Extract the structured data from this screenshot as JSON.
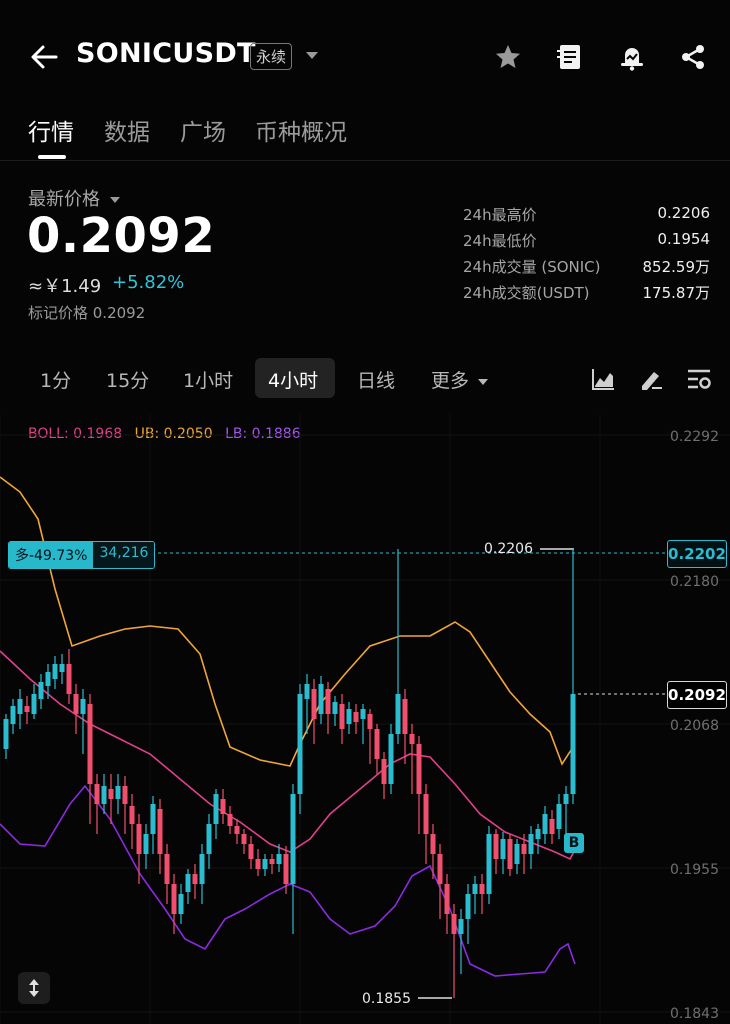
{
  "header": {
    "title": "SONICUSDT",
    "contract_type": "永续",
    "icons": [
      "back-arrow-icon",
      "star-icon",
      "notes-icon",
      "alarm-bell-icon",
      "share-icon"
    ]
  },
  "tabs": [
    "行情",
    "数据",
    "广场",
    "币种概况"
  ],
  "active_tab": "行情",
  "price_block": {
    "label": "最新价格",
    "price": "0.2092",
    "cny": "≈￥1.49",
    "change": "+5.82%",
    "mark_price": "标记价格 0.2092"
  },
  "stats": [
    {
      "k": "24h最高价",
      "v": "0.2206"
    },
    {
      "k": "24h最低价",
      "v": "0.1954"
    },
    {
      "k": "24h成交量 (SONIC)",
      "v": "852.59万"
    },
    {
      "k": "24h成交额(USDT)",
      "v": "175.87万"
    }
  ],
  "timeframes": [
    "1分",
    "15分",
    "1小时",
    "4小时",
    "日线",
    "更多"
  ],
  "active_timeframe": "4小时",
  "chart": {
    "boll": "BOLL: 0.1968",
    "ub": "UB: 0.2050",
    "lb": "LB: 0.1886",
    "y_ticks": [
      "0.2292",
      "0.2180",
      "0.2068",
      "0.1955",
      "0.1843"
    ],
    "position_tag": {
      "side": "多-49.73%",
      "qty": "34,216"
    },
    "reference_price": "0.2202",
    "last_price": "0.2092",
    "high_marker": "0.2206",
    "low_marker": "0.1855",
    "badge": "B",
    "colors": {
      "up": "#2bbcd0",
      "down": "#f0506e",
      "boll": "#e0408a",
      "ub": "#f0a53a",
      "lb": "#8a2be2"
    }
  }
}
